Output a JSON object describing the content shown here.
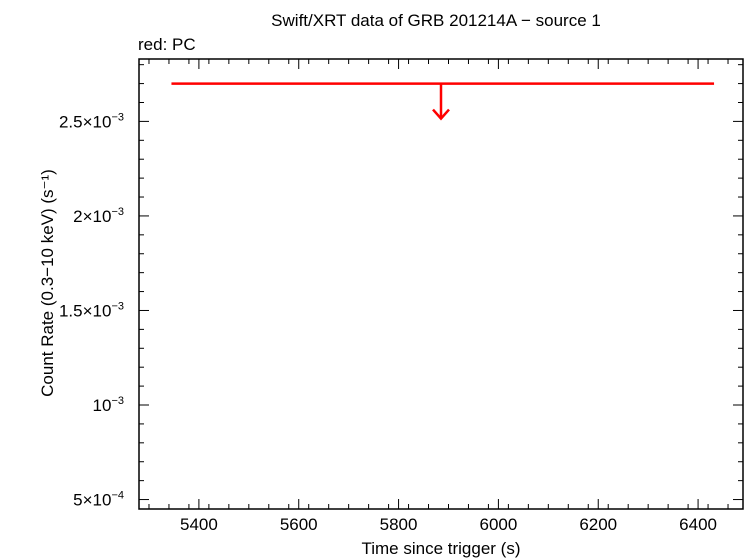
{
  "chart_data": {
    "type": "scatter",
    "title": "Swift/XRT data of GRB 201214A − source 1",
    "subtitle": "red: PC",
    "xlabel": "Time since trigger (s)",
    "ylabel": "Count Rate (0.3−10 keV) (s⁻¹)",
    "xlim": [
      5280,
      6490
    ],
    "ylim": [
      0.00045,
      0.00283
    ],
    "x_ticks": [
      5400,
      5600,
      5800,
      6000,
      6200,
      6400
    ],
    "y_ticks": [
      {
        "value": 0.0005,
        "mantissa": "5×10",
        "exp": "−4"
      },
      {
        "value": 0.001,
        "mantissa": "10",
        "exp": "−3"
      },
      {
        "value": 0.0015,
        "mantissa": "1.5×10",
        "exp": "−3"
      },
      {
        "value": 0.002,
        "mantissa": "2×10",
        "exp": "−3"
      },
      {
        "value": 0.0025,
        "mantissa": "2.5×10",
        "exp": "−3"
      }
    ],
    "series": [
      {
        "mode": "PC",
        "color": "#ff0000",
        "points": [
          {
            "x": 5885,
            "x_lo": 5345,
            "x_hi": 6432,
            "y": 0.0027,
            "upper_limit": true
          }
        ]
      }
    ],
    "grid": false
  }
}
